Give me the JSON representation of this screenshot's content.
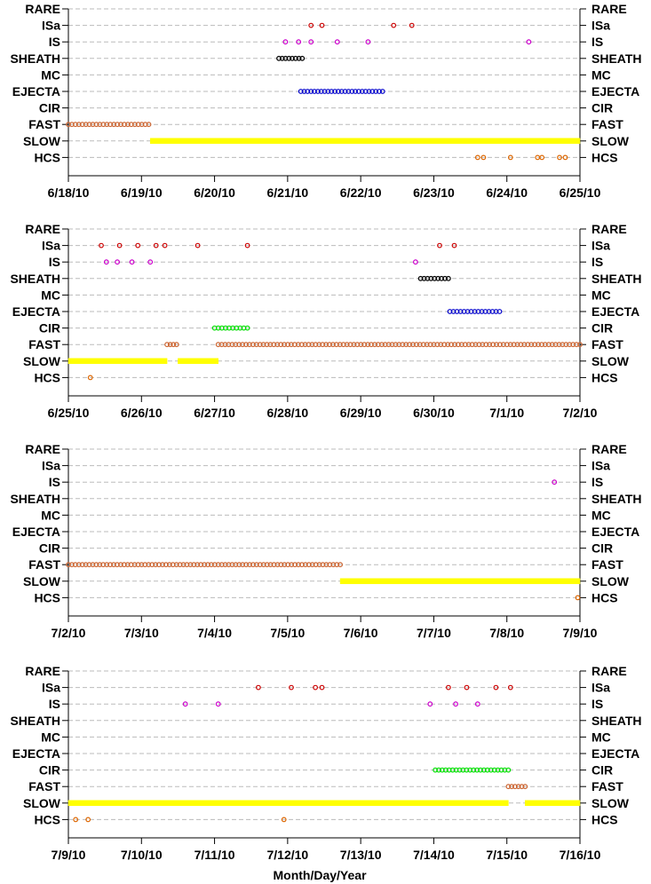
{
  "chart_data": {
    "type": "scatter",
    "categories": [
      "RARE",
      "ISa",
      "IS",
      "SHEATH",
      "MC",
      "EJECTA",
      "CIR",
      "FAST",
      "SLOW",
      "HCS"
    ],
    "xlabel": "Month/Day/Year",
    "colors": {
      "ISa": "#cc0000",
      "IS": "#cc00cc",
      "SHEATH": "#000000",
      "EJECTA": "#0000cc",
      "CIR": "#00dd00",
      "FAST": "#cc6633",
      "SLOW": "#ffff00",
      "HCS": "#dd6600",
      "grid": "#bbbbbb"
    },
    "panels": [
      {
        "xticks": [
          "6/18/10",
          "6/19/10",
          "6/20/10",
          "6/21/10",
          "6/22/10",
          "6/23/10",
          "6/24/10",
          "6/25/10"
        ],
        "xlim": [
          0,
          7
        ],
        "points": {
          "ISa": [
            3.32,
            3.47,
            4.45,
            4.7
          ],
          "IS": [
            2.97,
            3.15,
            3.32,
            3.68,
            4.1,
            6.3
          ],
          "HCS": [
            5.6,
            5.68,
            6.05,
            6.42,
            6.48,
            6.72,
            6.8
          ]
        },
        "segments": {
          "SHEATH": [
            [
              2.88,
              3.2
            ]
          ],
          "EJECTA": [
            [
              3.18,
              4.3
            ]
          ],
          "FAST": [
            [
              0.0,
              1.1
            ]
          ],
          "SLOW": [
            [
              1.12,
              7.0
            ]
          ]
        }
      },
      {
        "xticks": [
          "6/25/10",
          "6/26/10",
          "6/27/10",
          "6/28/10",
          "6/29/10",
          "6/30/10",
          "7/1/10",
          "7/2/10"
        ],
        "xlim": [
          0,
          7
        ],
        "points": {
          "ISa": [
            0.45,
            0.7,
            0.95,
            1.2,
            1.32,
            1.77,
            2.45,
            5.08,
            5.28
          ],
          "IS": [
            0.52,
            0.67,
            0.87,
            1.12,
            4.75
          ],
          "HCS": [
            0.3
          ]
        },
        "segments": {
          "SHEATH": [
            [
              4.82,
              5.2
            ]
          ],
          "EJECTA": [
            [
              5.22,
              5.9
            ]
          ],
          "CIR": [
            [
              2.0,
              2.45
            ]
          ],
          "FAST": [
            [
              1.35,
              1.48
            ],
            [
              2.05,
              7.0
            ]
          ],
          "SLOW": [
            [
              0.0,
              1.35
            ],
            [
              1.5,
              2.05
            ]
          ]
        }
      },
      {
        "xticks": [
          "7/2/10",
          "7/3/10",
          "7/4/10",
          "7/5/10",
          "7/6/10",
          "7/7/10",
          "7/8/10",
          "7/9/10"
        ],
        "xlim": [
          0,
          7
        ],
        "points": {
          "IS": [
            6.65
          ],
          "HCS": [
            6.97
          ]
        },
        "segments": {
          "FAST": [
            [
              0.0,
              3.72
            ]
          ],
          "SLOW": [
            [
              3.72,
              7.0
            ]
          ]
        }
      },
      {
        "xticks": [
          "7/9/10",
          "7/10/10",
          "7/11/10",
          "7/12/10",
          "7/13/10",
          "7/14/10",
          "7/15/10",
          "7/16/10"
        ],
        "xlim": [
          0,
          7
        ],
        "points": {
          "ISa": [
            2.6,
            3.05,
            3.38,
            3.47,
            5.2,
            5.45,
            5.85,
            6.05
          ],
          "IS": [
            1.6,
            2.05,
            4.95,
            5.3,
            5.6
          ],
          "HCS": [
            0.1,
            0.27,
            2.95
          ]
        },
        "segments": {
          "CIR": [
            [
              5.02,
              6.02
            ]
          ],
          "FAST": [
            [
              6.02,
              6.25
            ]
          ],
          "SLOW": [
            [
              0.0,
              6.02
            ],
            [
              6.25,
              7.0
            ]
          ]
        }
      }
    ]
  }
}
